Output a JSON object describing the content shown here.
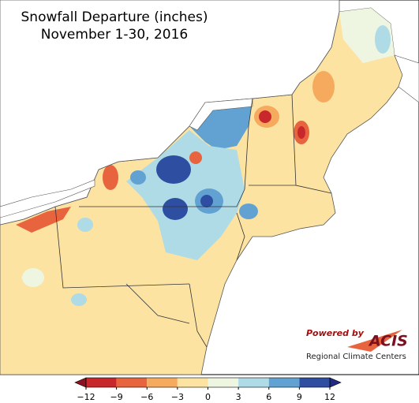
{
  "title": [
    "Snowfall Departure (inches)",
    "November 1-30, 2016"
  ],
  "colorbar": {
    "ticks": [
      {
        "value": -12,
        "label": "−12"
      },
      {
        "value": -9,
        "label": "−9"
      },
      {
        "value": -6,
        "label": "−6"
      },
      {
        "value": -3,
        "label": "−3"
      },
      0,
      3,
      6,
      9,
      12
    ],
    "colors": [
      "#c8282c",
      "#e8643e",
      "#f5aa5e",
      "#fde3a2",
      "#eef6e2",
      "#aedbe6",
      "#62a2d2",
      "#2e4ea2"
    ],
    "under_color": "#8c1222",
    "over_color": "#1f2b82"
  },
  "logo": {
    "powered_by": "Powered by",
    "name": "ACIS",
    "subtitle": "Regional Climate Centers"
  }
}
